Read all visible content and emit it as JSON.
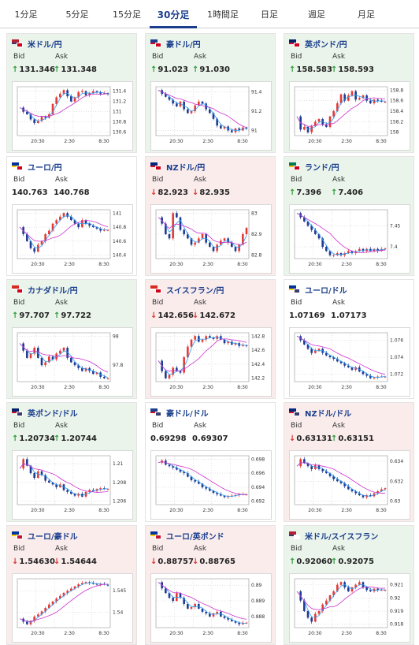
{
  "tabs": [
    {
      "label": "1分足",
      "active": false
    },
    {
      "label": "5分足",
      "active": false
    },
    {
      "label": "15分足",
      "active": false
    },
    {
      "label": "30分足",
      "active": true
    },
    {
      "label": "1時間足",
      "active": false
    },
    {
      "label": "日足",
      "active": false
    },
    {
      "label": "週足",
      "active": false
    },
    {
      "label": "月足",
      "active": false
    }
  ],
  "labels": {
    "bid": "Bid",
    "ask": "Ask"
  },
  "colors": {
    "up": "#2e9b3a",
    "down": "#d6352f",
    "bull_candle": "#e53935",
    "bear_candle": "#1f3a93",
    "ma_short": "#2a9df4",
    "ma_long": "#cc33cc",
    "title": "#1a3e8c"
  },
  "x_labels": [
    "20:30",
    "2:30",
    "8:30"
  ],
  "pairs": [
    {
      "name": "米ドル/円",
      "trend": "up",
      "bid": "131.346",
      "ask": "131.348",
      "bid_dir": "up",
      "ask_dir": "up",
      "flags": [
        "us",
        "jp"
      ],
      "y_labels": [
        "131.4",
        "131.2",
        "131",
        "130.8",
        "130.6"
      ],
      "series": [
        131.08,
        131.0,
        130.95,
        130.85,
        130.78,
        130.82,
        130.9,
        130.88,
        130.95,
        131.15,
        131.28,
        131.35,
        131.42,
        131.3,
        131.2,
        131.28,
        131.38,
        131.4,
        131.32,
        131.36,
        131.4,
        131.38,
        131.35,
        131.36,
        131.34
      ]
    },
    {
      "name": "豪ドル/円",
      "trend": "up",
      "bid": "91.023",
      "ask": "91.030",
      "bid_dir": "up",
      "ask_dir": "up",
      "flags": [
        "au",
        "jp"
      ],
      "y_labels": [
        "91.4",
        "91.2",
        "91"
      ],
      "series": [
        91.42,
        91.38,
        91.35,
        91.32,
        91.28,
        91.25,
        91.3,
        91.22,
        91.18,
        91.2,
        91.26,
        91.3,
        91.28,
        91.22,
        91.18,
        91.12,
        91.05,
        91.02,
        91.04,
        91.0,
        90.98,
        91.02,
        91.0,
        91.03,
        91.02
      ]
    },
    {
      "name": "英ポンド/円",
      "trend": "up",
      "bid": "158.583",
      "ask": "158.593",
      "bid_dir": "up",
      "ask_dir": "up",
      "flags": [
        "gb",
        "jp"
      ],
      "y_labels": [
        "158.8",
        "158.6",
        "158.4",
        "158.2",
        "158"
      ],
      "series": [
        158.3,
        158.05,
        158.1,
        158.0,
        158.12,
        158.2,
        158.25,
        158.15,
        158.1,
        158.3,
        158.4,
        158.55,
        158.72,
        158.6,
        158.7,
        158.78,
        158.62,
        158.65,
        158.7,
        158.6,
        158.55,
        158.62,
        158.6,
        158.58,
        158.58
      ]
    },
    {
      "name": "ユーロ/円",
      "trend": "flat",
      "bid": "140.763",
      "ask": "140.768",
      "bid_dir": "none",
      "ask_dir": "none",
      "flags": [
        "eu",
        "jp"
      ],
      "y_labels": [
        "141",
        "140.8",
        "140.6",
        "140.4"
      ],
      "series": [
        140.8,
        140.7,
        140.6,
        140.5,
        140.45,
        140.55,
        140.6,
        140.7,
        140.75,
        140.85,
        140.9,
        140.95,
        141.0,
        140.95,
        140.9,
        140.85,
        140.8,
        140.9,
        140.85,
        140.82,
        140.8,
        140.78,
        140.75,
        140.76,
        140.76
      ]
    },
    {
      "name": "NZドル/円",
      "trend": "down",
      "bid": "82.923",
      "ask": "82.935",
      "bid_dir": "down",
      "ask_dir": "down",
      "flags": [
        "nz",
        "jp"
      ],
      "y_labels": [
        "83",
        "82.9",
        "82.8"
      ],
      "series": [
        82.98,
        82.95,
        82.9,
        82.88,
        83.0,
        82.98,
        82.92,
        82.9,
        82.88,
        82.85,
        82.86,
        82.88,
        82.9,
        82.86,
        82.84,
        82.82,
        82.85,
        82.87,
        82.88,
        82.86,
        82.84,
        82.82,
        82.85,
        82.9,
        82.93
      ]
    },
    {
      "name": "ランド/円",
      "trend": "up",
      "bid": "7.396",
      "ask": "7.406",
      "bid_dir": "up",
      "ask_dir": "up",
      "flags": [
        "za",
        "jp"
      ],
      "y_labels": [
        "7.45",
        "7.4"
      ],
      "series": [
        7.48,
        7.47,
        7.46,
        7.45,
        7.44,
        7.43,
        7.42,
        7.4,
        7.39,
        7.38,
        7.38,
        7.385,
        7.38,
        7.385,
        7.39,
        7.385,
        7.39,
        7.395,
        7.39,
        7.395,
        7.39,
        7.395,
        7.39,
        7.395,
        7.396
      ]
    },
    {
      "name": "カナダドル/円",
      "trend": "up",
      "bid": "97.707",
      "ask": "97.722",
      "bid_dir": "up",
      "ask_dir": "up",
      "flags": [
        "ca",
        "jp"
      ],
      "y_labels": [
        "98",
        "97.8"
      ],
      "series": [
        97.95,
        97.9,
        97.85,
        97.88,
        97.92,
        97.85,
        97.8,
        97.82,
        97.86,
        97.84,
        97.88,
        97.9,
        97.92,
        97.85,
        97.82,
        97.8,
        97.78,
        97.76,
        97.78,
        97.76,
        97.74,
        97.75,
        97.72,
        97.71,
        97.71
      ]
    },
    {
      "name": "スイスフラン/円",
      "trend": "down",
      "bid": "142.656",
      "ask": "142.672",
      "bid_dir": "down",
      "ask_dir": "down",
      "flags": [
        "ch",
        "jp"
      ],
      "y_labels": [
        "142.8",
        "142.6",
        "142.4",
        "142.2"
      ],
      "series": [
        142.45,
        142.3,
        142.2,
        142.25,
        142.35,
        142.3,
        142.28,
        142.5,
        142.65,
        142.75,
        142.8,
        142.72,
        142.75,
        142.8,
        142.78,
        142.76,
        142.8,
        142.75,
        142.7,
        142.72,
        142.68,
        142.7,
        142.66,
        142.67,
        142.66
      ]
    },
    {
      "name": "ユーロ/ドル",
      "trend": "flat",
      "bid": "1.07169",
      "ask": "1.07173",
      "bid_dir": "none",
      "ask_dir": "none",
      "flags": [
        "eu",
        "us"
      ],
      "y_labels": [
        "1.076",
        "1.074",
        "1.072"
      ],
      "series": [
        1.0765,
        1.076,
        1.0755,
        1.075,
        1.0745,
        1.0748,
        1.075,
        1.0745,
        1.0742,
        1.074,
        1.0738,
        1.0735,
        1.0733,
        1.073,
        1.0728,
        1.0725,
        1.0728,
        1.0723,
        1.072,
        1.0718,
        1.0715,
        1.0716,
        1.0717,
        1.0717,
        1.0717
      ]
    },
    {
      "name": "英ポンド/ドル",
      "trend": "up",
      "bid": "1.20734",
      "ask": "1.20744",
      "bid_dir": "up",
      "ask_dir": "up",
      "flags": [
        "gb",
        "us"
      ],
      "y_labels": [
        "1.21",
        "1.208",
        "1.206"
      ],
      "series": [
        1.2095,
        1.2105,
        1.2098,
        1.209,
        1.2085,
        1.2092,
        1.2088,
        1.2082,
        1.208,
        1.2078,
        1.2075,
        1.2078,
        1.2072,
        1.207,
        1.2068,
        1.2066,
        1.2068,
        1.2065,
        1.207,
        1.2072,
        1.2071,
        1.2073,
        1.2074,
        1.2073,
        1.2073
      ]
    },
    {
      "name": "豪ドル/ドル",
      "trend": "flat",
      "bid": "0.69298",
      "ask": "0.69307",
      "bid_dir": "none",
      "ask_dir": "none",
      "flags": [
        "au",
        "us"
      ],
      "y_labels": [
        "0.698",
        "0.696",
        "0.694",
        "0.692"
      ],
      "series": [
        0.6975,
        0.6978,
        0.6972,
        0.697,
        0.6968,
        0.6965,
        0.6962,
        0.696,
        0.6955,
        0.695,
        0.6948,
        0.6945,
        0.694,
        0.6938,
        0.6935,
        0.6932,
        0.693,
        0.6928,
        0.6926,
        0.6927,
        0.6928,
        0.6929,
        0.693,
        0.693,
        0.693
      ]
    },
    {
      "name": "NZドル/ドル",
      "trend": "down",
      "bid": "0.63131",
      "ask": "0.63151",
      "bid_dir": "down",
      "ask_dir": "up",
      "flags": [
        "nz",
        "us"
      ],
      "y_labels": [
        "0.634",
        "0.632",
        "0.63"
      ],
      "series": [
        0.6335,
        0.6342,
        0.6338,
        0.6335,
        0.6332,
        0.6336,
        0.6332,
        0.633,
        0.6328,
        0.6325,
        0.6322,
        0.632,
        0.6318,
        0.6315,
        0.6312,
        0.631,
        0.6308,
        0.6306,
        0.6304,
        0.6306,
        0.6305,
        0.6308,
        0.631,
        0.6312,
        0.6313
      ]
    },
    {
      "name": "ユーロ/豪ドル",
      "trend": "down",
      "bid": "1.54630",
      "ask": "1.54644",
      "bid_dir": "down",
      "ask_dir": "down",
      "flags": [
        "eu",
        "au"
      ],
      "y_labels": [
        "1.545",
        "1.54"
      ],
      "series": [
        1.5385,
        1.5378,
        1.5372,
        1.538,
        1.539,
        1.5395,
        1.5402,
        1.541,
        1.5418,
        1.5425,
        1.5432,
        1.5438,
        1.5445,
        1.545,
        1.5455,
        1.546,
        1.5465,
        1.5468,
        1.547,
        1.5468,
        1.5466,
        1.5465,
        1.5466,
        1.5464,
        1.5463
      ]
    },
    {
      "name": "ユーロ/英ポンド",
      "trend": "down",
      "bid": "0.88757",
      "ask": "0.88765",
      "bid_dir": "down",
      "ask_dir": "down",
      "flags": [
        "eu",
        "gb"
      ],
      "y_labels": [
        "0.89",
        "0.889",
        "0.888"
      ],
      "series": [
        0.8902,
        0.8898,
        0.8895,
        0.8892,
        0.889,
        0.8895,
        0.8892,
        0.8888,
        0.8885,
        0.8886,
        0.8888,
        0.8885,
        0.8883,
        0.8882,
        0.888,
        0.8882,
        0.8883,
        0.888,
        0.8879,
        0.8878,
        0.8877,
        0.8876,
        0.8875,
        0.8876,
        0.8876
      ]
    },
    {
      "name": "米ドル/スイスフラン",
      "trend": "up",
      "bid": "0.92060",
      "ask": "0.92075",
      "bid_dir": "up",
      "ask_dir": "up",
      "flags": [
        "us",
        "ch"
      ],
      "y_labels": [
        "0.921",
        "0.92",
        "0.919",
        "0.918"
      ],
      "series": [
        0.9205,
        0.9198,
        0.919,
        0.9185,
        0.9182,
        0.9188,
        0.919,
        0.9195,
        0.9198,
        0.9202,
        0.9205,
        0.921,
        0.9212,
        0.9208,
        0.9205,
        0.9208,
        0.921,
        0.9212,
        0.9208,
        0.9206,
        0.9205,
        0.9207,
        0.9206,
        0.9206,
        0.9206
      ]
    }
  ]
}
